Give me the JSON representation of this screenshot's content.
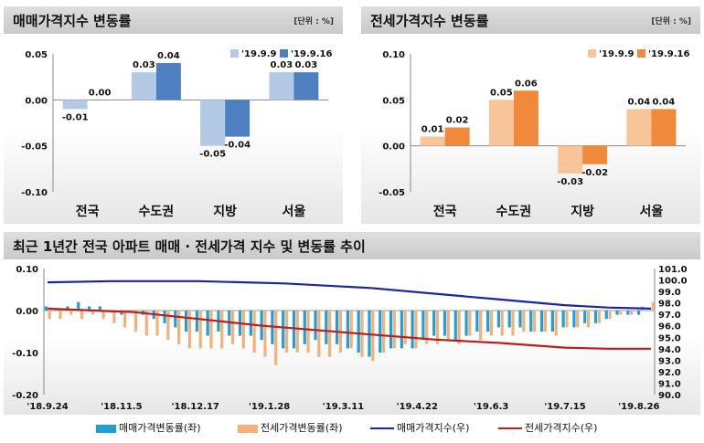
{
  "panels": {
    "sale": {
      "title": "매매가격지수 변동률",
      "unit": "[단위 : %]"
    },
    "jeonse": {
      "title": "전세가격지수 변동률",
      "unit": "[단위 : %]"
    },
    "trend": {
      "title": "최근 1년간 전국 아파트 매매 · 전세가격 지수 및 변동률 추이"
    }
  },
  "colors": {
    "sale_prev": "#b4c9e6",
    "sale_curr": "#4e7fc0",
    "jeonse_prev": "#f8c49a",
    "jeonse_curr": "#f08a3a",
    "sale_change_bar": "#1e9fd6",
    "jeonse_change_bar": "#f5b07a",
    "sale_index_line": "#1a24a8",
    "jeonse_index_line": "#c01a1a"
  },
  "chart_data": [
    {
      "type": "bar",
      "categories": [
        "전국",
        "수도권",
        "지방",
        "서울"
      ],
      "series": [
        {
          "name": "'19.9.9",
          "values": [
            -0.01,
            0.03,
            -0.05,
            0.03
          ]
        },
        {
          "name": "'19.9.16",
          "values": [
            0.0,
            0.04,
            -0.04,
            0.03
          ]
        }
      ],
      "value_labels": [
        [
          "-0.01",
          "0.03",
          "-0.05",
          "0.03"
        ],
        [
          "0.00",
          "0.04",
          "-0.04",
          "0.03"
        ]
      ],
      "ylim": [
        -0.1,
        0.05
      ],
      "yticks": [
        "0.05",
        "0.00",
        "-0.05",
        "-0.10"
      ],
      "legend": "top-right"
    },
    {
      "type": "bar",
      "categories": [
        "전국",
        "수도권",
        "지방",
        "서울"
      ],
      "series": [
        {
          "name": "'19.9.9",
          "values": [
            0.01,
            0.05,
            -0.03,
            0.04
          ]
        },
        {
          "name": "'19.9.16",
          "values": [
            0.02,
            0.06,
            -0.02,
            0.04
          ]
        }
      ],
      "value_labels": [
        [
          "0.01",
          "0.05",
          "-0.03",
          "0.04"
        ],
        [
          "0.02",
          "0.06",
          "-0.02",
          "0.04"
        ]
      ],
      "ylim": [
        -0.05,
        0.1
      ],
      "yticks": [
        "0.10",
        "0.05",
        "0.00",
        "-0.05"
      ],
      "legend": "top-right"
    },
    {
      "type": "bar+line",
      "x_ticks": [
        "'18.9.24",
        "'18.11.5",
        "'18.12.17",
        "'19.1.28",
        "'19.3.11",
        "'19.4.22",
        "'19.6.3",
        "'19.7.15",
        "'19.8.26"
      ],
      "y_left_ticks": [
        "0.10",
        "0.00",
        "-0.10",
        "-0.20"
      ],
      "y_left_range": [
        -0.2,
        0.1
      ],
      "y_right_ticks": [
        "101.0",
        "100.0",
        "99.0",
        "98.0",
        "97.0",
        "96.0",
        "95.0",
        "94.0",
        "93.0",
        "92.0",
        "91.0",
        "90.0"
      ],
      "y_right_range": [
        90.0,
        101.0
      ],
      "series": [
        {
          "name": "매매가격변동률(좌)",
          "kind": "bar",
          "axis": "left",
          "values": [
            0.01,
            0.0,
            0.01,
            0.02,
            0.01,
            0.01,
            0.0,
            -0.01,
            0.0,
            -0.01,
            -0.02,
            -0.03,
            -0.04,
            -0.05,
            -0.05,
            -0.06,
            -0.05,
            -0.06,
            -0.06,
            -0.06,
            -0.07,
            -0.08,
            -0.09,
            -0.09,
            -0.08,
            -0.07,
            -0.08,
            -0.08,
            -0.09,
            -0.1,
            -0.11,
            -0.1,
            -0.09,
            -0.09,
            -0.09,
            -0.07,
            -0.06,
            -0.06,
            -0.07,
            -0.06,
            -0.05,
            -0.05,
            -0.04,
            -0.04,
            -0.04,
            -0.05,
            -0.05,
            -0.05,
            -0.04,
            -0.04,
            -0.03,
            -0.03,
            -0.02,
            -0.01,
            -0.01,
            -0.01,
            0.0
          ]
        },
        {
          "name": "전세가격변동률(좌)",
          "kind": "bar",
          "axis": "left",
          "values": [
            -0.02,
            -0.02,
            -0.01,
            -0.02,
            -0.01,
            -0.02,
            -0.03,
            -0.04,
            -0.05,
            -0.06,
            -0.06,
            -0.07,
            -0.08,
            -0.09,
            -0.09,
            -0.09,
            -0.09,
            -0.08,
            -0.09,
            -0.1,
            -0.11,
            -0.13,
            -0.1,
            -0.1,
            -0.1,
            -0.11,
            -0.11,
            -0.1,
            -0.09,
            -0.11,
            -0.12,
            -0.1,
            -0.09,
            -0.08,
            -0.09,
            -0.08,
            -0.08,
            -0.07,
            -0.08,
            -0.06,
            -0.07,
            -0.06,
            -0.06,
            -0.06,
            -0.05,
            -0.05,
            -0.05,
            -0.06,
            -0.04,
            -0.04,
            -0.04,
            -0.03,
            -0.02,
            -0.01,
            -0.01,
            0.01,
            0.02
          ]
        },
        {
          "name": "매매가격지수(우)",
          "kind": "line",
          "axis": "right",
          "points": [
            [
              0,
              99.8
            ],
            [
              6,
              99.9
            ],
            [
              14,
              99.9
            ],
            [
              22,
              99.7
            ],
            [
              30,
              99.3
            ],
            [
              36,
              98.8
            ],
            [
              42,
              98.3
            ],
            [
              48,
              97.8
            ],
            [
              52,
              97.6
            ],
            [
              56,
              97.5
            ]
          ]
        },
        {
          "name": "전세가격지수(우)",
          "kind": "line",
          "axis": "right",
          "points": [
            [
              0,
              97.5
            ],
            [
              8,
              97.2
            ],
            [
              14,
              96.6
            ],
            [
              20,
              96.0
            ],
            [
              28,
              95.4
            ],
            [
              36,
              94.8
            ],
            [
              42,
              94.5
            ],
            [
              48,
              94.1
            ],
            [
              52,
              94.0
            ],
            [
              56,
              94.0
            ]
          ]
        }
      ]
    }
  ]
}
